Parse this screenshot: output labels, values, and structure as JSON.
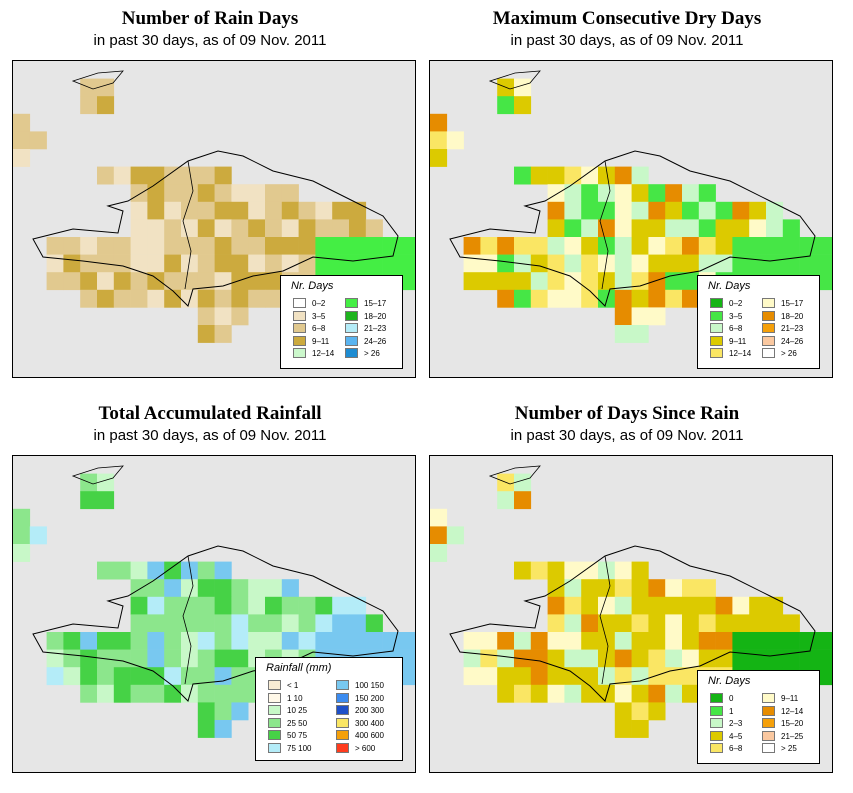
{
  "panels": [
    {
      "title": "Number of Rain Days",
      "subtitle": "in past 30 days, as of  09 Nov. 2011",
      "legend_title": "Nr. Days",
      "legend_cols": 2,
      "legend": [
        {
          "label": "0–2",
          "color": "#ffffff"
        },
        {
          "label": "3–5",
          "color": "#f1e2c3"
        },
        {
          "label": "6–8",
          "color": "#e1c98f"
        },
        {
          "label": "9–11",
          "color": "#ccaa3e"
        },
        {
          "label": "12–14",
          "color": "#ccf8cc"
        },
        {
          "label": "15–17",
          "color": "#44ee44"
        },
        {
          "label": "18–20",
          "color": "#1eb41e"
        },
        {
          "label": "21–23",
          "color": "#b4ecf8"
        },
        {
          "label": "24–26",
          "color": "#5ab4f0"
        },
        {
          "label": "> 26",
          "color": "#1e8cd2"
        }
      ]
    },
    {
      "title": "Maximum Consecutive Dry Days",
      "subtitle": "in past 30 days, as of  09 Nov. 2011",
      "legend_title": "Nr. Days",
      "legend_cols": 2,
      "legend": [
        {
          "label": "0–2",
          "color": "#14b414"
        },
        {
          "label": "3–5",
          "color": "#46e646"
        },
        {
          "label": "6–8",
          "color": "#c8f8c8"
        },
        {
          "label": "9–11",
          "color": "#dcca00"
        },
        {
          "label": "12–14",
          "color": "#fae664"
        },
        {
          "label": "15–17",
          "color": "#fffac8"
        },
        {
          "label": "18–20",
          "color": "#e68c00"
        },
        {
          "label": "21–23",
          "color": "#f5a00a"
        },
        {
          "label": "24–26",
          "color": "#fac8a0"
        },
        {
          "label": "> 26",
          "color": "#ffffff"
        }
      ]
    },
    {
      "title": "Total Accumulated Rainfall",
      "subtitle": "in past 30 days, as of  09 Nov. 2011",
      "legend_title": "Rainfall (mm)",
      "legend_cols": 2,
      "legend": [
        {
          "label": "< 1",
          "color": "#f8ecd4"
        },
        {
          "label": "1   10",
          "color": "#fff8e8"
        },
        {
          "label": "10   25",
          "color": "#c8f8c8"
        },
        {
          "label": "25   50",
          "color": "#8ce68c"
        },
        {
          "label": "50   75",
          "color": "#46d246"
        },
        {
          "label": "75   100",
          "color": "#b4ecf8"
        },
        {
          "label": "100   150",
          "color": "#78c8f0"
        },
        {
          "label": "150   200",
          "color": "#3c8cf0"
        },
        {
          "label": "200   300",
          "color": "#1e50c8"
        },
        {
          "label": "300   400",
          "color": "#fae664"
        },
        {
          "label": "400   600",
          "color": "#f5a00a"
        },
        {
          "label": "> 600",
          "color": "#ff3c1e"
        }
      ]
    },
    {
      "title": "Number of Days Since Rain",
      "subtitle": "in past 30 days, as of  09 Nov. 2011",
      "legend_title": "Nr. Days",
      "legend_cols": 2,
      "legend": [
        {
          "label": "0",
          "color": "#14b414"
        },
        {
          "label": "1",
          "color": "#46e646"
        },
        {
          "label": "2–3",
          "color": "#c8f8c8"
        },
        {
          "label": "4–5",
          "color": "#dcca00"
        },
        {
          "label": "6–8",
          "color": "#fae664"
        },
        {
          "label": "9–11",
          "color": "#fffac8"
        },
        {
          "label": "12–14",
          "color": "#e68c00"
        },
        {
          "label": "15–20",
          "color": "#f5a00a"
        },
        {
          "label": "21–25",
          "color": "#fac8a0"
        },
        {
          "label": "> 25",
          "color": "#ffffff"
        }
      ]
    }
  ]
}
